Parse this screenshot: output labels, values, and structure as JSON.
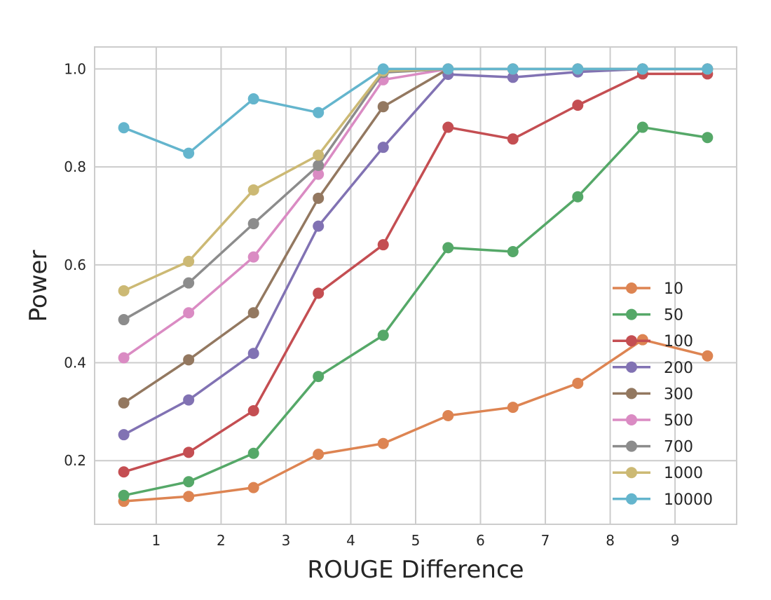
{
  "chart_data": {
    "type": "line",
    "title": "",
    "xlabel": "ROUGE Difference",
    "ylabel": "Power",
    "xlim": [
      0.05,
      9.95
    ],
    "ylim": [
      0.07,
      1.045
    ],
    "xticks": [
      "1",
      "2",
      "3",
      "4",
      "5",
      "6",
      "7",
      "8",
      "9"
    ],
    "yticks": [
      "0.2",
      "0.4",
      "0.6",
      "0.8",
      "1.0"
    ],
    "grid": true,
    "legend_position": "lower-right",
    "x": [
      0.5,
      1.5,
      2.5,
      3.5,
      4.5,
      5.5,
      6.5,
      7.5,
      8.5,
      9.5
    ],
    "series": [
      {
        "name": "10",
        "color": "#dd8452",
        "values": [
          0.117,
          0.127,
          0.145,
          0.213,
          0.235,
          0.292,
          0.309,
          0.358,
          0.447,
          0.414
        ]
      },
      {
        "name": "50",
        "color": "#55a868",
        "values": [
          0.129,
          0.157,
          0.215,
          0.372,
          0.456,
          0.635,
          0.627,
          0.739,
          0.881,
          0.86
        ]
      },
      {
        "name": "100",
        "color": "#c44e52",
        "values": [
          0.177,
          0.217,
          0.302,
          0.542,
          0.641,
          0.881,
          0.857,
          0.926,
          0.99,
          0.99
        ]
      },
      {
        "name": "200",
        "color": "#8172b3",
        "values": [
          0.253,
          0.324,
          0.419,
          0.679,
          0.84,
          0.989,
          0.983,
          0.994,
          1.0,
          1.0
        ]
      },
      {
        "name": "300",
        "color": "#937860",
        "values": [
          0.318,
          0.406,
          0.502,
          0.736,
          0.923,
          1.0,
          1.0,
          1.0,
          1.0,
          1.0
        ]
      },
      {
        "name": "500",
        "color": "#da8bc3",
        "values": [
          0.41,
          0.502,
          0.616,
          0.785,
          0.978,
          1.0,
          1.0,
          1.0,
          1.0,
          1.0
        ]
      },
      {
        "name": "700",
        "color": "#8c8c8c",
        "values": [
          0.488,
          0.563,
          0.684,
          0.803,
          0.993,
          1.0,
          1.0,
          1.0,
          1.0,
          1.0
        ]
      },
      {
        "name": "1000",
        "color": "#ccb974",
        "values": [
          0.547,
          0.607,
          0.753,
          0.824,
          0.996,
          1.0,
          1.0,
          1.0,
          1.0,
          1.0
        ]
      },
      {
        "name": "10000",
        "color": "#64b5cd",
        "values": [
          0.88,
          0.828,
          0.939,
          0.911,
          1.0,
          1.0,
          1.0,
          1.0,
          1.0,
          1.0
        ]
      }
    ]
  }
}
